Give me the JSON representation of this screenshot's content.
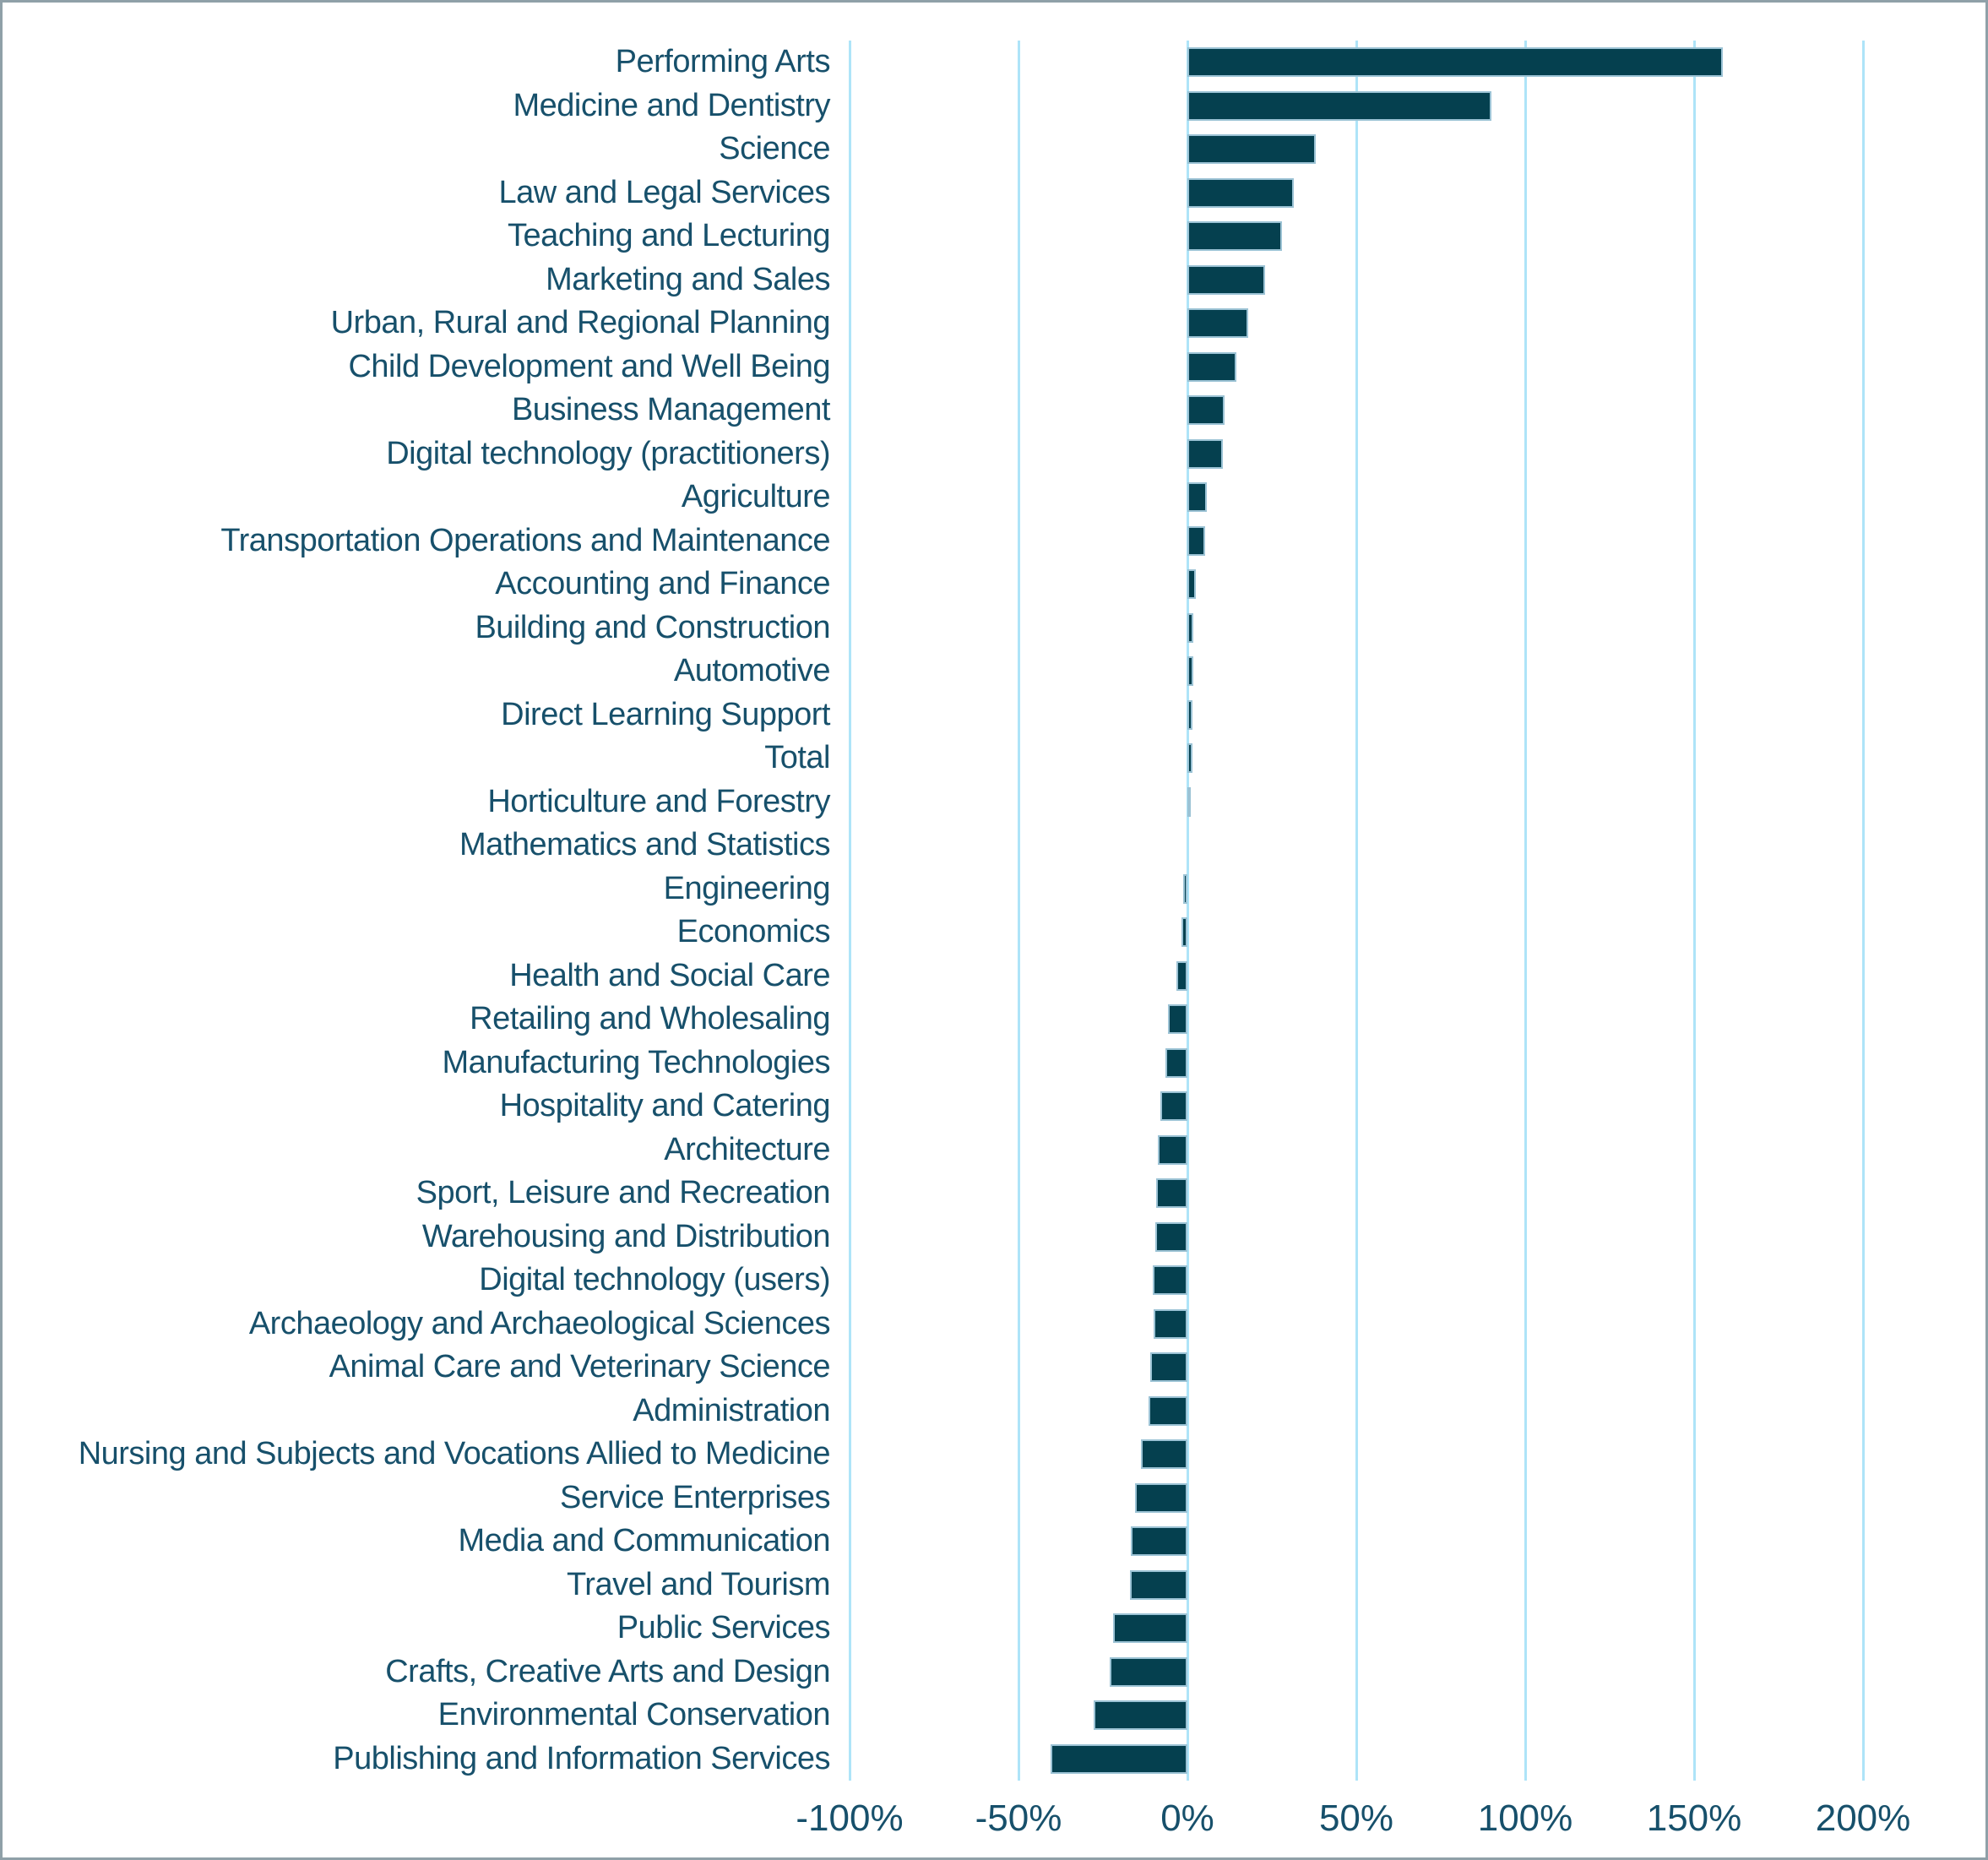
{
  "chart_data": {
    "type": "bar",
    "orientation": "horizontal",
    "title": "",
    "xlabel": "",
    "ylabel": "",
    "unit": "%",
    "categories": [
      "Performing Arts",
      "Medicine and Dentistry",
      "Science",
      "Law and Legal Services",
      "Teaching and Lecturing",
      "Marketing and Sales",
      "Urban, Rural and Regional Planning",
      "Child Development and Well Being",
      "Business Management",
      "Digital technology (practitioners)",
      "Agriculture",
      "Transportation Operations and Maintenance",
      "Accounting and Finance",
      "Building and Construction",
      "Automotive",
      "Direct Learning Support",
      "Total",
      "Horticulture and Forestry",
      "Mathematics and Statistics",
      "Engineering",
      "Economics",
      "Health and Social Care",
      "Retailing and Wholesaling",
      "Manufacturing Technologies",
      "Hospitality and Catering",
      "Architecture",
      "Sport, Leisure and Recreation",
      "Warehousing and Distribution",
      "Digital technology (users)",
      "Archaeology and Archaeological Sciences",
      "Animal Care and Veterinary Science",
      "Administration",
      "Nursing and Subjects and Vocations Allied to Medicine",
      "Service Enterprises",
      "Media and Communication",
      "Travel and Tourism",
      "Public Services",
      "Crafts, Creative Arts and Design",
      "Environmental Conservation",
      "Publishing and Information Services"
    ],
    "values": [
      158.5,
      90,
      38,
      31.5,
      28,
      23,
      18,
      14.5,
      11,
      10.5,
      5.8,
      5.3,
      2.5,
      1.7,
      1.8,
      1.5,
      1.5,
      0.8,
      0,
      -1.2,
      -1.7,
      -3.3,
      -5.7,
      -6.5,
      -8,
      -8.8,
      -9.3,
      -9.6,
      -10.2,
      -10,
      -11,
      -11.4,
      -13.8,
      -15.5,
      -16.7,
      -17,
      -22,
      -23,
      -27.8,
      -40.5
    ],
    "x_ticks": [
      "-100%",
      "-50%",
      "0%",
      "50%",
      "100%",
      "150%",
      "200%"
    ],
    "x_tick_values": [
      -100,
      -50,
      0,
      50,
      100,
      150,
      200
    ],
    "xlim": [
      -100,
      200
    ],
    "grid": "vertical-only",
    "legend": "none",
    "colors": {
      "bar_fill": "#05404F",
      "bar_border": "#9CC3D5",
      "gridline": "#AEE4F8",
      "label_text": "#17506B",
      "background": "#FFFFFF",
      "frame_border": "#8FA0A8"
    }
  }
}
